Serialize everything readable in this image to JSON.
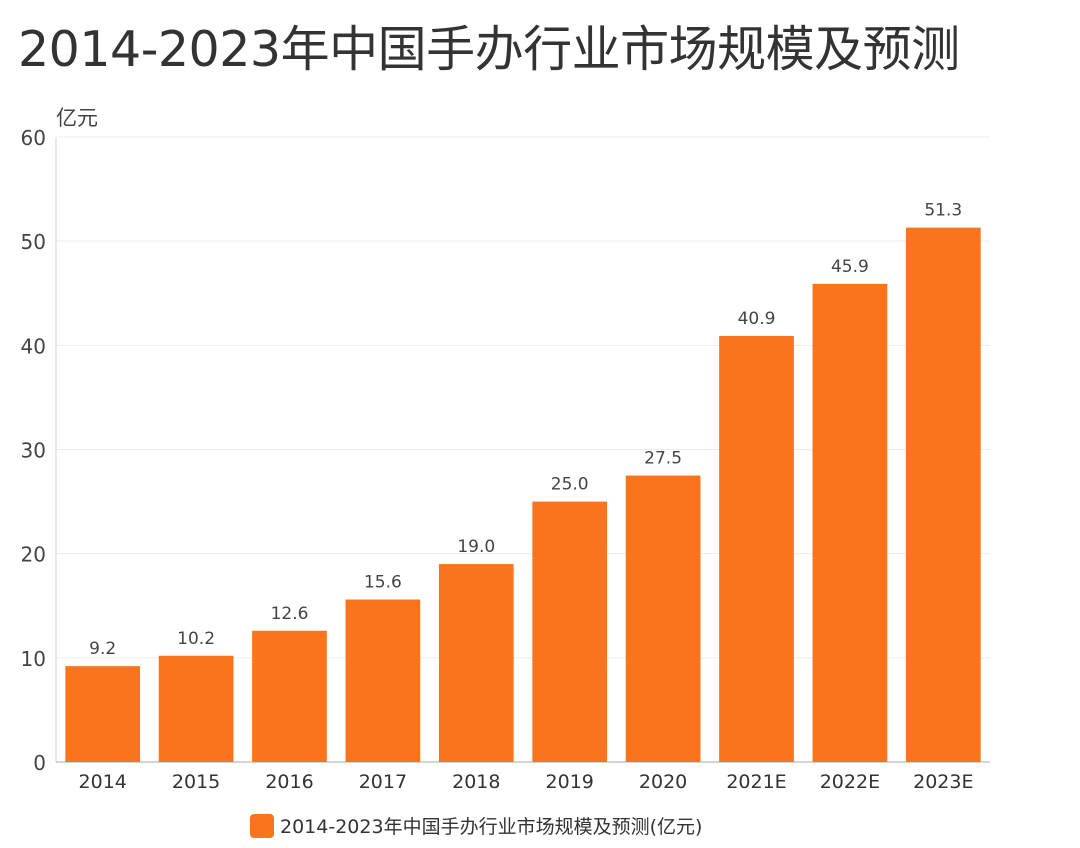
{
  "page_title": "2014-2023年中国手办行业市场规模及预测",
  "chart_data": {
    "type": "bar",
    "title": "2014-2023年中国手办行业市场规模及预测",
    "ylabel": "亿元",
    "xlabel": "",
    "categories": [
      "2014",
      "2015",
      "2016",
      "2017",
      "2018",
      "2019",
      "2020",
      "2021E",
      "2022E",
      "2023E"
    ],
    "series": [
      {
        "name": "2014-2023年中国手办行业市场规模及预测(亿元)",
        "values": [
          9.2,
          10.2,
          12.6,
          15.6,
          19.0,
          25.0,
          27.5,
          40.9,
          45.9,
          51.3
        ],
        "labels": [
          "9.2",
          "10.2",
          "12.6",
          "15.6",
          "19.0",
          "25.0",
          "27.5",
          "40.9",
          "45.9",
          "51.3"
        ]
      }
    ],
    "ylim": [
      0,
      60
    ],
    "yticks": [
      0,
      10,
      20,
      30,
      40,
      50,
      60
    ],
    "grid": true,
    "legend": "bottom-center",
    "bar_color": "#fa741e"
  }
}
